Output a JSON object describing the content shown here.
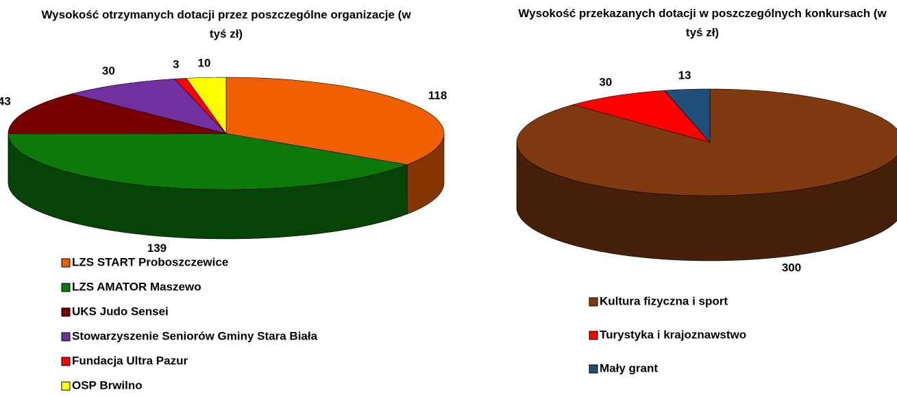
{
  "chart_data": [
    {
      "type": "pie",
      "title": "Wysokość otrzymanych dotacji przez poszczególne organizacje (w tyś zł)",
      "categories": [
        "LZS START Proboszczewice",
        "LZS AMATOR Maszewo",
        "UKS Judo Sensei",
        "Stowarzyszenie Seniorów Gminy Stara Biała",
        "Fundacja Ultra Pazur",
        "OSP Brwilno"
      ],
      "values": [
        118,
        139,
        43,
        30,
        3,
        10
      ],
      "colors": [
        "#f06000",
        "#0b7a0b",
        "#7a0000",
        "#7030a0",
        "#ff0000",
        "#ffff00"
      ]
    },
    {
      "type": "pie",
      "title": "Wysokość przekazanych dotacji w poszczególnych konkursach (w tyś zł)",
      "categories": [
        "Kultura fizyczna i sport",
        "Turystyka i krajoznawstwo",
        "Mały grant"
      ],
      "values": [
        300,
        30,
        13
      ],
      "colors": [
        "#7f3a10",
        "#ff0000",
        "#1f4e79"
      ]
    }
  ]
}
